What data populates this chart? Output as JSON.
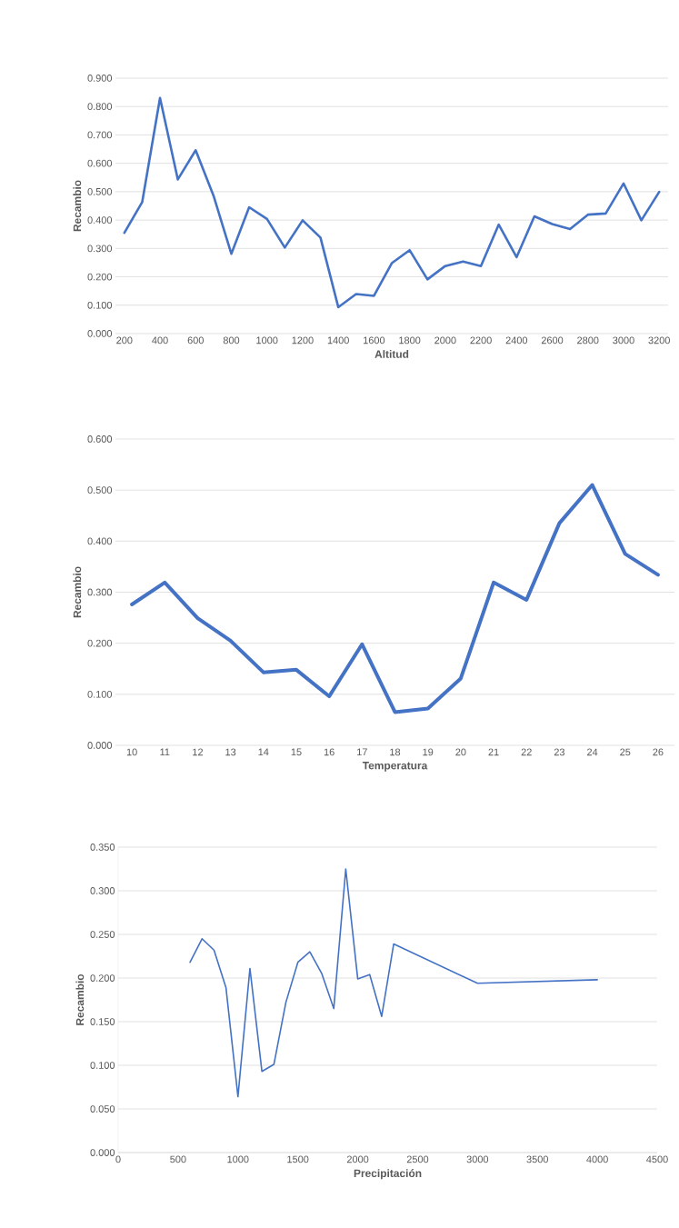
{
  "chart_data": [
    {
      "type": "line",
      "ylabel": "Recambio",
      "xlabel": "Altitud",
      "color": "#4472c4",
      "grid": "y",
      "marker": "none",
      "categories": [
        "200",
        null,
        "400",
        null,
        "600",
        null,
        "800",
        null,
        "1000",
        null,
        "1200",
        null,
        "1400",
        null,
        "1600",
        null,
        "1800",
        null,
        "2000",
        null,
        "2200",
        null,
        "2400",
        null,
        "2600",
        null,
        "2800",
        null,
        "3000",
        null,
        "3200"
      ],
      "values": [
        0.355,
        0.463,
        0.83,
        0.543,
        0.646,
        0.486,
        0.281,
        0.445,
        0.404,
        0.303,
        0.399,
        0.338,
        0.093,
        0.139,
        0.133,
        0.248,
        0.294,
        0.191,
        0.238,
        0.254,
        0.238,
        0.384,
        0.269,
        0.413,
        0.386,
        0.368,
        0.419,
        0.423,
        0.529,
        0.399,
        0.499
      ],
      "ylim": [
        0,
        0.9
      ],
      "yticks": [
        {
          "value": 0,
          "label": "0.000"
        },
        {
          "value": 0.1,
          "label": "0.100"
        },
        {
          "value": 0.2,
          "label": "0.200"
        },
        {
          "value": 0.3,
          "label": "0.300"
        },
        {
          "value": 0.4,
          "label": "0.400"
        },
        {
          "value": 0.5,
          "label": "0.500"
        },
        {
          "value": 0.6,
          "label": "0.600"
        },
        {
          "value": 0.7,
          "label": "0.700"
        },
        {
          "value": 0.8,
          "label": "0.800"
        },
        {
          "value": 0.9,
          "label": "0.900"
        }
      ]
    },
    {
      "type": "line",
      "ylabel": "Recambio",
      "xlabel": "Temperatura",
      "color": "#4472c4",
      "grid": "y",
      "marker": "none",
      "categories": [
        "10",
        "11",
        "12",
        "13",
        "14",
        "15",
        "16",
        "17",
        "18",
        "19",
        "20",
        "21",
        "22",
        "23",
        "24",
        "25",
        "26"
      ],
      "values": [
        0.276,
        0.319,
        0.249,
        0.205,
        0.143,
        0.148,
        0.096,
        0.198,
        0.065,
        0.072,
        0.131,
        0.319,
        0.285,
        0.435,
        0.51,
        0.375,
        0.334
      ],
      "ylim": [
        0,
        0.6
      ],
      "yticks": [
        {
          "value": 0,
          "label": "0.000"
        },
        {
          "value": 0.1,
          "label": "0.100"
        },
        {
          "value": 0.2,
          "label": "0.200"
        },
        {
          "value": 0.3,
          "label": "0.300"
        },
        {
          "value": 0.4,
          "label": "0.400"
        },
        {
          "value": 0.5,
          "label": "0.500"
        },
        {
          "value": 0.6,
          "label": "0.600"
        }
      ]
    },
    {
      "type": "line",
      "ylabel": "Recambio",
      "xlabel": "Precipitación",
      "color": "#4472c4",
      "grid": "y",
      "marker": "none",
      "x": [
        600,
        700,
        800,
        900,
        1000,
        1100,
        1200,
        1300,
        1400,
        1500,
        1600,
        1700,
        1800,
        1900,
        2000,
        2100,
        2200,
        2300,
        3000,
        4000
      ],
      "values": [
        0.218,
        0.245,
        0.232,
        0.189,
        0.064,
        0.211,
        0.093,
        0.101,
        0.172,
        0.218,
        0.23,
        0.205,
        0.165,
        0.325,
        0.199,
        0.204,
        0.156,
        0.239,
        0.194,
        0.198
      ],
      "xlim": [
        0,
        4500
      ],
      "xticks": [
        0,
        500,
        1000,
        1500,
        2000,
        2500,
        3000,
        3500,
        4000,
        4500
      ],
      "ylim": [
        0,
        0.35
      ],
      "yticks": [
        {
          "value": 0,
          "label": "0.000"
        },
        {
          "value": 0.05,
          "label": "0.050"
        },
        {
          "value": 0.1,
          "label": "0.100"
        },
        {
          "value": 0.15,
          "label": "0.150"
        },
        {
          "value": 0.2,
          "label": "0.200"
        },
        {
          "value": 0.25,
          "label": "0.250"
        },
        {
          "value": 0.3,
          "label": "0.300"
        },
        {
          "value": 0.35,
          "label": "0.350"
        }
      ]
    }
  ]
}
